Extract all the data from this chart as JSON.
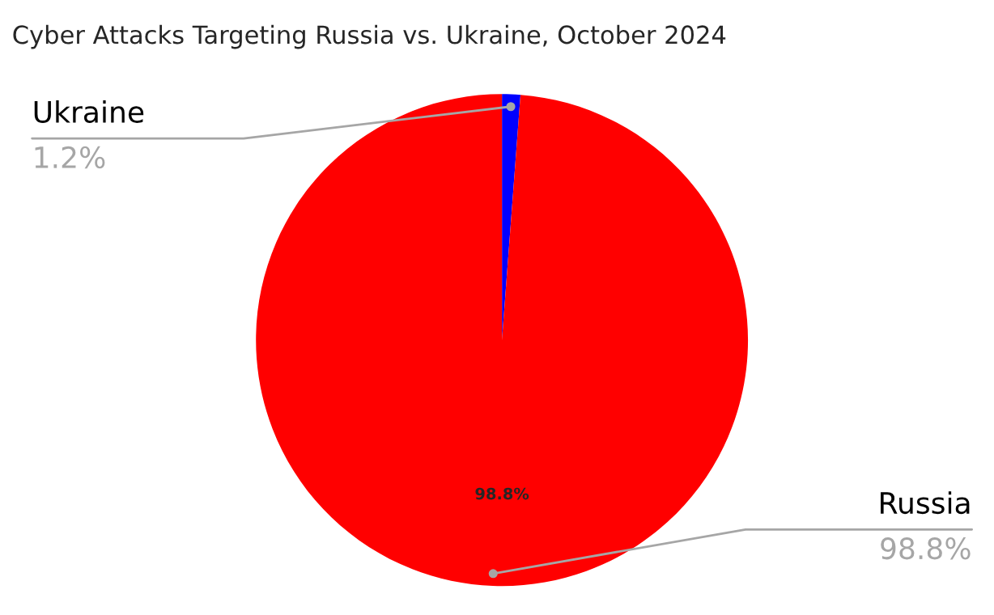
{
  "chart_data": {
    "type": "pie",
    "title": "Cyber Attacks Targeting Russia vs. Ukraine, October 2024",
    "categories": [
      "Ukraine",
      "Russia"
    ],
    "values": [
      1.2,
      98.8
    ],
    "colors": [
      "#0000ff",
      "#ff0000"
    ],
    "value_labels": [
      "1.2%",
      "98.8%"
    ],
    "annotations": [
      "98.8%"
    ],
    "legend": false
  }
}
